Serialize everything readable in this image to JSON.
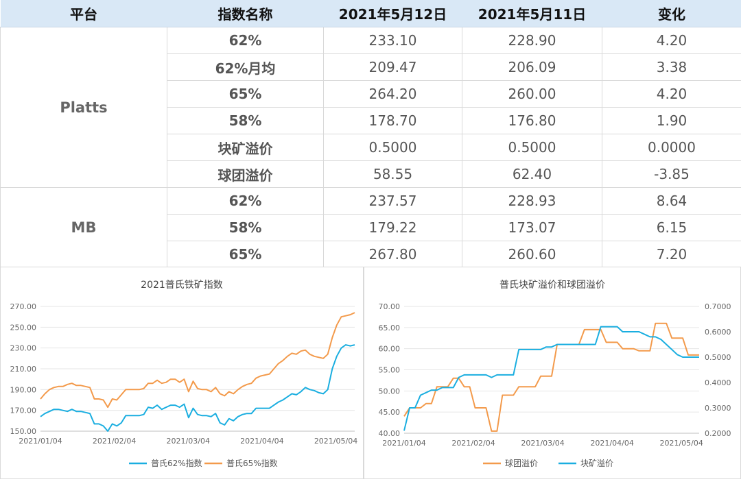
{
  "table": {
    "headers": [
      "平台",
      "指数名称",
      "2021年5月12日",
      "2021年5月11日",
      "变化"
    ],
    "groups": [
      {
        "platform": "Platts",
        "rows": [
          {
            "name": "62%",
            "v1": "233.10",
            "v2": "228.90",
            "change": "4.20",
            "dir": "up"
          },
          {
            "name": "62%月均",
            "v1": "209.47",
            "v2": "206.09",
            "change": "3.38",
            "dir": "up"
          },
          {
            "name": "65%",
            "v1": "264.20",
            "v2": "260.00",
            "change": "4.20",
            "dir": "up"
          },
          {
            "name": "58%",
            "v1": "178.70",
            "v2": "176.80",
            "change": "1.90",
            "dir": "up"
          },
          {
            "name": "块矿溢价",
            "v1": "0.5000",
            "v2": "0.5000",
            "change": "0.0000",
            "dir": "flat"
          },
          {
            "name": "球团溢价",
            "v1": "58.55",
            "v2": "62.40",
            "change": "-3.85",
            "dir": "down"
          }
        ]
      },
      {
        "platform": "MB",
        "rows": [
          {
            "name": "62%",
            "v1": "237.57",
            "v2": "228.93",
            "change": "8.64",
            "dir": "up"
          },
          {
            "name": "58%",
            "v1": "179.22",
            "v2": "173.07",
            "change": "6.15",
            "dir": "up"
          },
          {
            "name": "65%",
            "v1": "267.80",
            "v2": "260.60",
            "change": "7.20",
            "dir": "up"
          }
        ]
      }
    ]
  },
  "colors": {
    "blue": "#1aaee0",
    "orange": "#f39a4b",
    "up": "#e00000",
    "down": "#00a050"
  },
  "chart_data": [
    {
      "type": "line",
      "title": "2021普氏铁矿指数",
      "xticks": [
        "2021/01/04",
        "2021/02/04",
        "2021/03/04",
        "2021/04/04",
        "2021/05/04"
      ],
      "ylim": [
        150,
        270
      ],
      "yticks": [
        "150.00",
        "170.00",
        "190.00",
        "210.00",
        "230.00",
        "250.00",
        "270.00"
      ],
      "legend": "bottom",
      "x": [
        0,
        2,
        4,
        6,
        8,
        10,
        12,
        14,
        16,
        18,
        20,
        22,
        24,
        26,
        28,
        30,
        32,
        34,
        36,
        38,
        40,
        42,
        44,
        46,
        48,
        50,
        52,
        54,
        56,
        58,
        60,
        62,
        64,
        66,
        68,
        70,
        72,
        74,
        76,
        78,
        80,
        82,
        84,
        86,
        88,
        90,
        92,
        94,
        96,
        98,
        100,
        102,
        104,
        106,
        108,
        110,
        112,
        114,
        116,
        118,
        120,
        122,
        124,
        126,
        128,
        130,
        132,
        134,
        136,
        138,
        140,
        142,
        144,
        146,
        148,
        150,
        152,
        154,
        156,
        158,
        160
      ],
      "series": [
        {
          "name": "普氏62%指数",
          "color": "#1aaee0",
          "values": [
            164,
            167,
            169,
            171,
            171,
            170,
            169,
            171,
            169,
            169,
            168,
            167,
            157,
            157,
            155,
            150,
            157,
            155,
            158,
            165,
            165,
            165,
            165,
            166,
            173,
            172,
            175,
            171,
            173,
            175,
            175,
            173,
            176,
            163,
            172,
            166,
            165,
            165,
            164,
            167,
            158,
            156,
            162,
            160,
            164,
            166,
            167,
            167,
            172,
            172,
            172,
            172,
            175,
            178,
            180,
            183,
            186,
            185,
            188,
            192,
            190,
            189,
            187,
            186,
            190,
            210,
            222,
            230,
            233,
            232,
            233,
            233,
            233,
            233,
            233,
            233,
            233,
            233,
            233,
            233,
            233
          ]
        },
        {
          "name": "普氏65%指数",
          "color": "#f39a4b",
          "values": [
            181,
            186,
            190,
            192,
            193,
            193,
            195,
            196,
            194,
            194,
            193,
            192,
            181,
            181,
            180,
            173,
            181,
            180,
            185,
            190,
            190,
            190,
            190,
            191,
            196,
            196,
            199,
            196,
            197,
            200,
            200,
            197,
            200,
            188,
            198,
            191,
            190,
            190,
            188,
            192,
            186,
            184,
            188,
            186,
            190,
            193,
            195,
            196,
            201,
            203,
            204,
            205,
            210,
            215,
            218,
            222,
            225,
            224,
            227,
            228,
            224,
            222,
            221,
            220,
            224,
            240,
            252,
            260,
            261,
            262,
            264,
            264,
            264,
            264,
            264,
            264,
            264,
            264,
            264,
            264,
            264
          ]
        }
      ]
    },
    {
      "type": "line",
      "title": "普氏块矿溢价和球团溢价",
      "xticks": [
        "2021/01/04",
        "2021/02/04",
        "2021/03/04",
        "2021/04/04",
        "2021/05/04"
      ],
      "ylim": [
        40,
        70
      ],
      "yticks": [
        "40.00",
        "45.00",
        "50.00",
        "55.00",
        "60.00",
        "65.00",
        "70.00"
      ],
      "y2lim": [
        0.2,
        0.7
      ],
      "y2ticks": [
        "0.2000",
        "0.3000",
        "0.4000",
        "0.5000",
        "0.6000",
        "0.7000"
      ],
      "legend": "bottom",
      "x": [
        0,
        2,
        4,
        6,
        8,
        10,
        12,
        14,
        16,
        18,
        20,
        22,
        24,
        26,
        28,
        30,
        32,
        34,
        36,
        38,
        40,
        42,
        44,
        46,
        48,
        50,
        52,
        54,
        56,
        58,
        60,
        62,
        64,
        66,
        68,
        70,
        72,
        74,
        76,
        78,
        80,
        82,
        84,
        86,
        88,
        90,
        92,
        94,
        96,
        98,
        100,
        102,
        104,
        106,
        108,
        110,
        112,
        114,
        116,
        118,
        120,
        122,
        124,
        126,
        128,
        130,
        132,
        134,
        136,
        138,
        140,
        142,
        144,
        146,
        148,
        150,
        152,
        154,
        156,
        158,
        160
      ],
      "series": [
        {
          "name": "球团溢价",
          "color": "#f39a4b",
          "axis": "left",
          "values": [
            44,
            46,
            46,
            46,
            47,
            47,
            51,
            51,
            51,
            53,
            53,
            51,
            51,
            46,
            46,
            46,
            40.5,
            40.5,
            49,
            49,
            49,
            51,
            51,
            51,
            51,
            53.5,
            53.5,
            53.5,
            61,
            61,
            61,
            61,
            61,
            64.5,
            64.5,
            64.5,
            64.5,
            61.5,
            61.5,
            61.5,
            60,
            60,
            60,
            59.5,
            59.5,
            59.5,
            66,
            66,
            66,
            62.5,
            62.5,
            62.5,
            58.5,
            58.5,
            58.5,
            58.5,
            58.5,
            58.5,
            58.5,
            58.5,
            58.5,
            58.5,
            58.5,
            58.5,
            58.5,
            58.5,
            58.5,
            58.5,
            58.5,
            58.5,
            58.5,
            58.5,
            58.5,
            58.5,
            58.5,
            58.5,
            58.5,
            58.5,
            58.5,
            58.5,
            58.5
          ]
        },
        {
          "name": "块矿溢价",
          "color": "#1aaee0",
          "axis": "right",
          "values": [
            0.21,
            0.3,
            0.3,
            0.35,
            0.36,
            0.37,
            0.37,
            0.38,
            0.38,
            0.38,
            0.42,
            0.43,
            0.43,
            0.43,
            0.43,
            0.43,
            0.42,
            0.43,
            0.43,
            0.43,
            0.43,
            0.53,
            0.53,
            0.53,
            0.53,
            0.53,
            0.54,
            0.54,
            0.55,
            0.55,
            0.55,
            0.55,
            0.55,
            0.55,
            0.55,
            0.55,
            0.62,
            0.62,
            0.62,
            0.62,
            0.6,
            0.6,
            0.6,
            0.6,
            0.59,
            0.58,
            0.58,
            0.57,
            0.55,
            0.53,
            0.51,
            0.5,
            0.5,
            0.5,
            0.5,
            0.5,
            0.5,
            0.5,
            0.5,
            0.5,
            0.5,
            0.5,
            0.5,
            0.5,
            0.5,
            0.5,
            0.5,
            0.5,
            0.5,
            0.5,
            0.5,
            0.5,
            0.5,
            0.5,
            0.5,
            0.5,
            0.5,
            0.5,
            0.5,
            0.5,
            0.5
          ]
        }
      ]
    }
  ]
}
